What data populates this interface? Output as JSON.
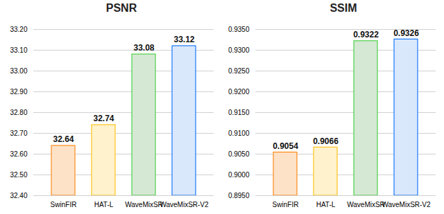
{
  "chart_data": [
    {
      "type": "bar",
      "title": "PSNR",
      "categories": [
        "SwinFIR",
        "HAT-L",
        "WaveMixSR",
        "WaveMixSR-V2"
      ],
      "values": [
        32.64,
        32.74,
        33.08,
        33.12
      ],
      "colors": [
        "#fde2c8",
        "#fff2cc",
        "#d5e8d4",
        "#dae8fc"
      ],
      "ylim": [
        32.4,
        33.2
      ],
      "yticks": [
        {
          "value": 32.4,
          "label": "32.40"
        },
        {
          "value": 32.5,
          "label": "32.50"
        },
        {
          "value": 32.6,
          "label": "32.60"
        },
        {
          "value": 32.7,
          "label": "32.70"
        },
        {
          "value": 32.8,
          "label": "32.80"
        },
        {
          "value": 32.9,
          "label": "32.90"
        },
        {
          "value": 33.0,
          "label": "33.00"
        },
        {
          "value": 33.1,
          "label": "33.10"
        },
        {
          "value": 33.2,
          "label": "33.20"
        }
      ],
      "grid": true,
      "data_labels": true
    },
    {
      "type": "bar",
      "title": "SSIM",
      "categories": [
        "SwinFIR",
        "HAT-L",
        "WaveMixSR",
        "WaveMixSR-V2"
      ],
      "values": [
        0.9054,
        0.9066,
        0.9322,
        0.9326
      ],
      "colors": [
        "#fde2c8",
        "#fff2cc",
        "#d5e8d4",
        "#dae8fc"
      ],
      "ylim": [
        0.895,
        0.935
      ],
      "yticks": [
        {
          "value": 0.895,
          "label": "0.8950"
        },
        {
          "value": 0.9,
          "label": "0.9000"
        },
        {
          "value": 0.905,
          "label": "0.9050"
        },
        {
          "value": 0.91,
          "label": "0.9100"
        },
        {
          "value": 0.915,
          "label": "0.9150"
        },
        {
          "value": 0.92,
          "label": "0.9200"
        },
        {
          "value": 0.925,
          "label": "0.9250"
        },
        {
          "value": 0.93,
          "label": "0.9300"
        },
        {
          "value": 0.935,
          "label": "0.9350"
        }
      ],
      "grid": true,
      "data_labels": true
    }
  ]
}
